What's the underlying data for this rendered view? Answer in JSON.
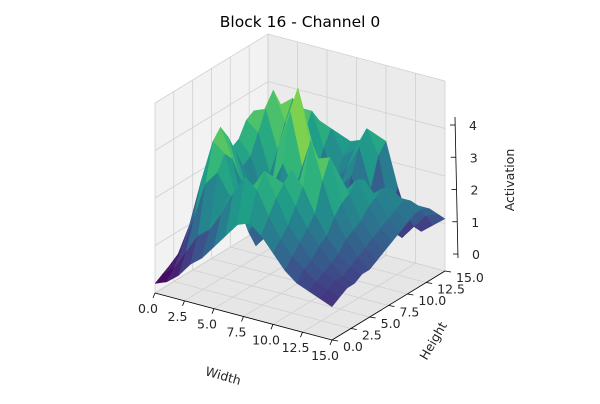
{
  "chart_data": {
    "type": "surface3d",
    "title": "Block 16 - Channel 0",
    "xlabel": "Width",
    "ylabel": "Height",
    "zlabel": "Activation",
    "xlim": [
      0,
      15
    ],
    "ylim": [
      0,
      15
    ],
    "zlim": [
      0,
      4
    ],
    "x_ticks": [
      "0.0",
      "2.5",
      "5.0",
      "7.5",
      "10.0",
      "12.5",
      "15.0"
    ],
    "y_ticks": [
      "0.0",
      "2.5",
      "5.0",
      "7.5",
      "10.0",
      "12.5",
      "15.0"
    ],
    "z_ticks": [
      "0",
      "1",
      "2",
      "3",
      "4"
    ],
    "grid": true,
    "colormap": "viridis",
    "grid_step": 1,
    "z": [
      [
        0.2,
        0.3,
        0.5,
        0.8,
        1.0,
        1.3,
        1.6,
        1.9,
        2.0,
        1.8,
        1.5,
        1.2,
        1.0,
        0.9,
        0.8,
        0.7
      ],
      [
        0.3,
        0.5,
        0.9,
        1.3,
        1.5,
        1.9,
        2.4,
        2.8,
        2.6,
        2.1,
        1.7,
        1.4,
        1.2,
        1.0,
        0.9,
        0.8
      ],
      [
        0.4,
        0.8,
        1.5,
        2.3,
        2.6,
        2.2,
        2.0,
        2.5,
        2.9,
        2.4,
        1.9,
        1.6,
        1.3,
        1.1,
        1.0,
        0.9
      ],
      [
        0.5,
        1.2,
        2.2,
        3.1,
        2.9,
        2.0,
        1.4,
        1.8,
        2.7,
        2.6,
        2.2,
        1.8,
        1.5,
        1.2,
        1.0,
        0.9
      ],
      [
        0.6,
        1.4,
        2.6,
        3.3,
        2.7,
        1.6,
        1.0,
        1.3,
        2.1,
        2.8,
        2.5,
        2.0,
        1.6,
        1.3,
        1.1,
        1.0
      ],
      [
        0.7,
        1.5,
        2.8,
        3.0,
        2.2,
        1.3,
        1.2,
        1.6,
        1.9,
        2.4,
        3.4,
        2.6,
        1.9,
        1.5,
        1.2,
        1.0
      ],
      [
        0.8,
        1.6,
        2.7,
        2.6,
        1.8,
        1.4,
        2.0,
        2.6,
        2.1,
        1.8,
        2.9,
        3.0,
        2.1,
        1.6,
        1.3,
        1.1
      ],
      [
        0.9,
        1.7,
        2.5,
        2.2,
        1.5,
        1.7,
        2.8,
        3.6,
        2.5,
        1.4,
        1.9,
        2.6,
        2.2,
        1.7,
        1.4,
        1.2
      ],
      [
        1.0,
        1.9,
        2.6,
        2.3,
        1.6,
        1.9,
        3.2,
        4.0,
        2.9,
        1.0,
        1.2,
        2.1,
        2.4,
        1.9,
        1.5,
        1.3
      ],
      [
        1.1,
        2.0,
        2.9,
        2.7,
        1.9,
        1.8,
        2.7,
        3.3,
        2.4,
        0.8,
        0.6,
        1.5,
        2.3,
        2.0,
        1.6,
        1.4
      ],
      [
        1.2,
        2.1,
        3.0,
        3.1,
        2.3,
        1.6,
        2.0,
        2.5,
        1.7,
        0.9,
        0.4,
        1.0,
        1.9,
        2.1,
        1.7,
        1.5
      ],
      [
        1.3,
        2.0,
        2.8,
        3.4,
        2.8,
        1.9,
        1.5,
        1.8,
        1.4,
        1.3,
        0.5,
        0.7,
        1.5,
        2.0,
        1.8,
        1.6
      ],
      [
        1.4,
        1.9,
        2.4,
        3.0,
        3.2,
        2.5,
        1.7,
        1.4,
        1.6,
        1.9,
        0.9,
        0.5,
        1.1,
        1.7,
        1.7,
        1.6
      ],
      [
        1.3,
        1.7,
        2.0,
        2.4,
        2.9,
        2.9,
        2.2,
        1.6,
        1.9,
        2.4,
        1.6,
        0.6,
        0.8,
        1.3,
        1.5,
        1.5
      ],
      [
        1.2,
        1.5,
        1.7,
        1.9,
        2.3,
        2.6,
        2.5,
        2.0,
        2.2,
        2.7,
        2.2,
        1.0,
        0.6,
        0.9,
        1.2,
        1.3
      ],
      [
        1.1,
        1.3,
        1.5,
        1.6,
        1.8,
        2.1,
        2.3,
        2.2,
        2.3,
        2.5,
        2.4,
        1.5,
        0.8,
        0.7,
        0.9,
        1.1
      ]
    ]
  }
}
